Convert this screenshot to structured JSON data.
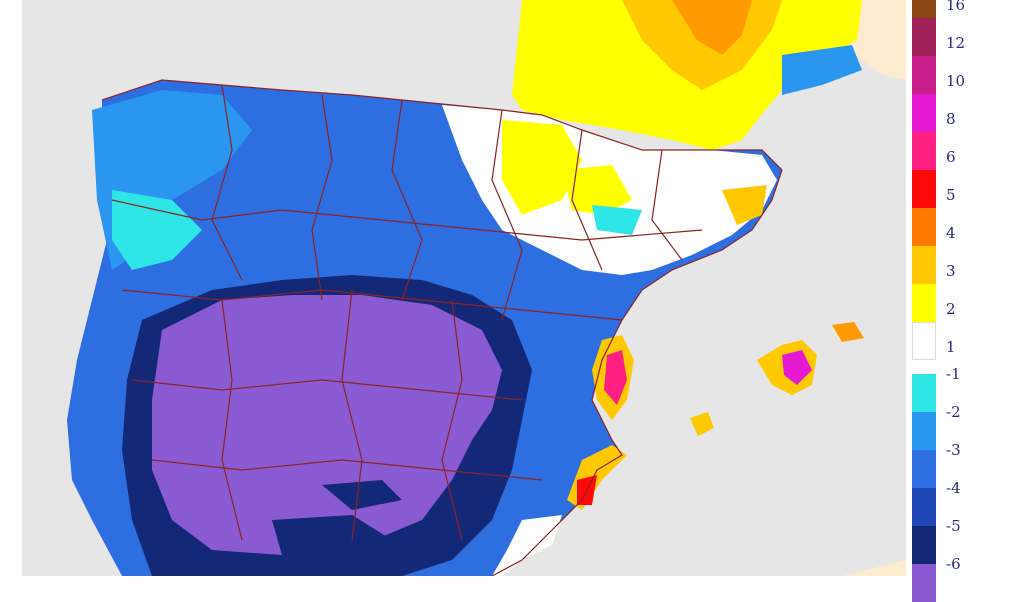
{
  "legend": {
    "positive": [
      {
        "label": "16",
        "color": "#8b4513"
      },
      {
        "label": "12",
        "color": "#a0205a"
      },
      {
        "label": "10",
        "color": "#c81e8c"
      },
      {
        "label": "8",
        "color": "#e619d2"
      },
      {
        "label": "6",
        "color": "#ff1e82"
      },
      {
        "label": "5",
        "color": "#ff0a0a"
      },
      {
        "label": "4",
        "color": "#ff7a00"
      },
      {
        "label": "3",
        "color": "#ffc800"
      },
      {
        "label": "2",
        "color": "#ffff00"
      },
      {
        "label": "1",
        "color": "#ffffff"
      }
    ],
    "negative": [
      {
        "label": "-1",
        "color": "#2ee6e6"
      },
      {
        "label": "-2",
        "color": "#2a96f0"
      },
      {
        "label": "-3",
        "color": "#2d6ee1"
      },
      {
        "label": "-4",
        "color": "#1e46b4"
      },
      {
        "label": "-5",
        "color": "#142878"
      },
      {
        "label": "-6",
        "color": "#8a5ad2"
      }
    ]
  },
  "colors": {
    "sea": "#e6e6e6",
    "land_other": "#fdebd0",
    "borders": "#8b2323"
  }
}
